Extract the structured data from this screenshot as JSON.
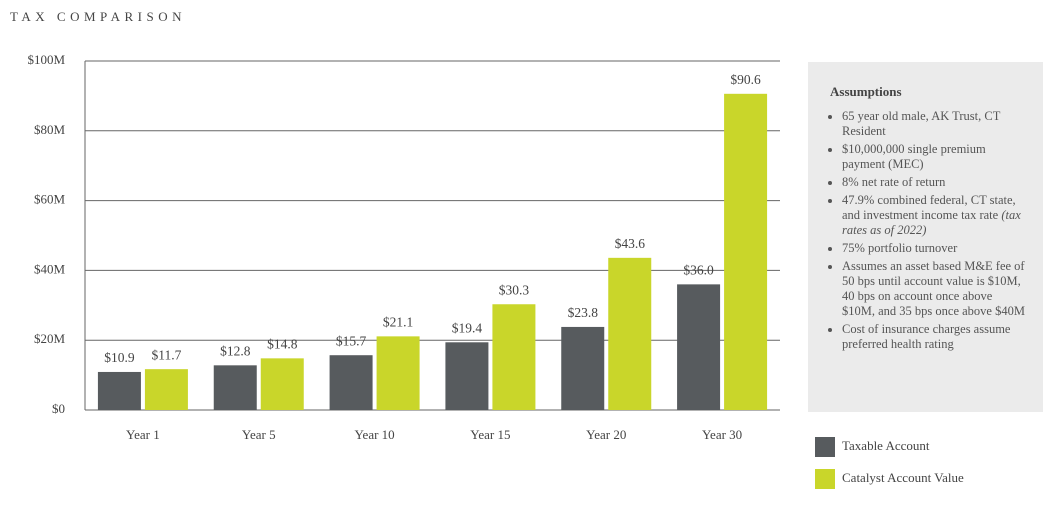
{
  "chart_data": {
    "type": "bar",
    "title": "TAX COMPARISON",
    "categories": [
      "Year 1",
      "Year 5",
      "Year 10",
      "Year 15",
      "Year 20",
      "Year 30"
    ],
    "series": [
      {
        "name": "Taxable Account",
        "color": "#575b5e",
        "values": [
          10.9,
          12.8,
          15.7,
          19.4,
          23.8,
          36.0
        ],
        "value_labels": [
          "$10.9",
          "$12.8",
          "$15.7",
          "$19.4",
          "$23.8",
          "$36.0"
        ]
      },
      {
        "name": "Catalyst Account Value",
        "color": "#c9d62a",
        "values": [
          11.7,
          14.8,
          21.1,
          30.3,
          43.6,
          90.6
        ],
        "value_labels": [
          "$11.7",
          "$14.8",
          "$21.1",
          "$30.3",
          "$43.6",
          "$90.6"
        ]
      }
    ],
    "ylim": [
      0,
      100
    ],
    "yticks": [
      {
        "value": 0,
        "label": "$0"
      },
      {
        "value": 20,
        "label": "$20M"
      },
      {
        "value": 40,
        "label": "$40M"
      },
      {
        "value": 60,
        "label": "$60M"
      },
      {
        "value": 80,
        "label": "$80M"
      },
      {
        "value": 100,
        "label": "$100M"
      }
    ],
    "grid": true
  },
  "assumptions": {
    "title": "Assumptions",
    "items": [
      {
        "text": "65 year old male, AK Trust, CT Resident"
      },
      {
        "text": "$10,000,000 single premium payment (MEC)"
      },
      {
        "text": "8% net rate of return"
      },
      {
        "text": "47.9% combined federal, CT state, and investment income tax rate",
        "note": "(tax rates as of 2022)"
      },
      {
        "text": "75% portfolio turnover"
      },
      {
        "text": "Assumes an asset based M&E fee of 50 bps until account value is $10M, 40 bps on account once above $10M, and 35 bps once above $40M"
      },
      {
        "text": "Cost of insurance charges assume preferred health rating"
      }
    ]
  }
}
